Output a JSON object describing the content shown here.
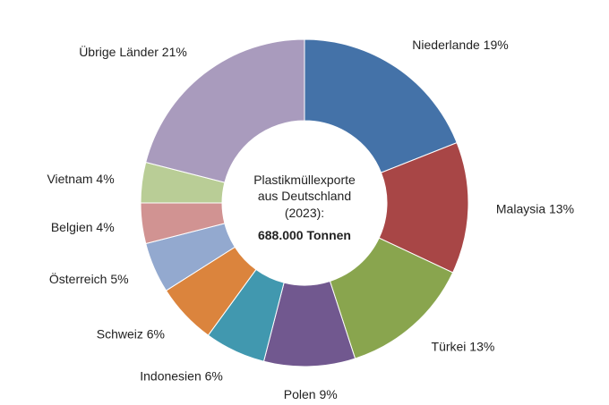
{
  "chart_data": {
    "type": "pie",
    "style": "donut",
    "center_title_lines": [
      "Plastikmüllexporte",
      "aus Deutschland",
      "(2023):"
    ],
    "center_total": "688.000 Tonnen",
    "slices": [
      {
        "label": "Niederlande 19%",
        "value": 19,
        "color": "#4472a8"
      },
      {
        "label": "Malaysia 13%",
        "value": 13,
        "color": "#a84646"
      },
      {
        "label": "Türkei 13%",
        "value": 13,
        "color": "#89a54e"
      },
      {
        "label": "Polen 9%",
        "value": 9,
        "color": "#71588f"
      },
      {
        "label": "Indonesien 6%",
        "value": 6,
        "color": "#4198af"
      },
      {
        "label": "Schweiz 6%",
        "value": 6,
        "color": "#db843d"
      },
      {
        "label": "Österreich 5%",
        "value": 5,
        "color": "#93a9cf"
      },
      {
        "label": "Belgien 4%",
        "value": 4,
        "color": "#d19392"
      },
      {
        "label": "Vietnam 4%",
        "value": 4,
        "color": "#b9cd96"
      },
      {
        "label": "Übrige Länder 21%",
        "value": 21,
        "color": "#a99bbd"
      }
    ]
  }
}
